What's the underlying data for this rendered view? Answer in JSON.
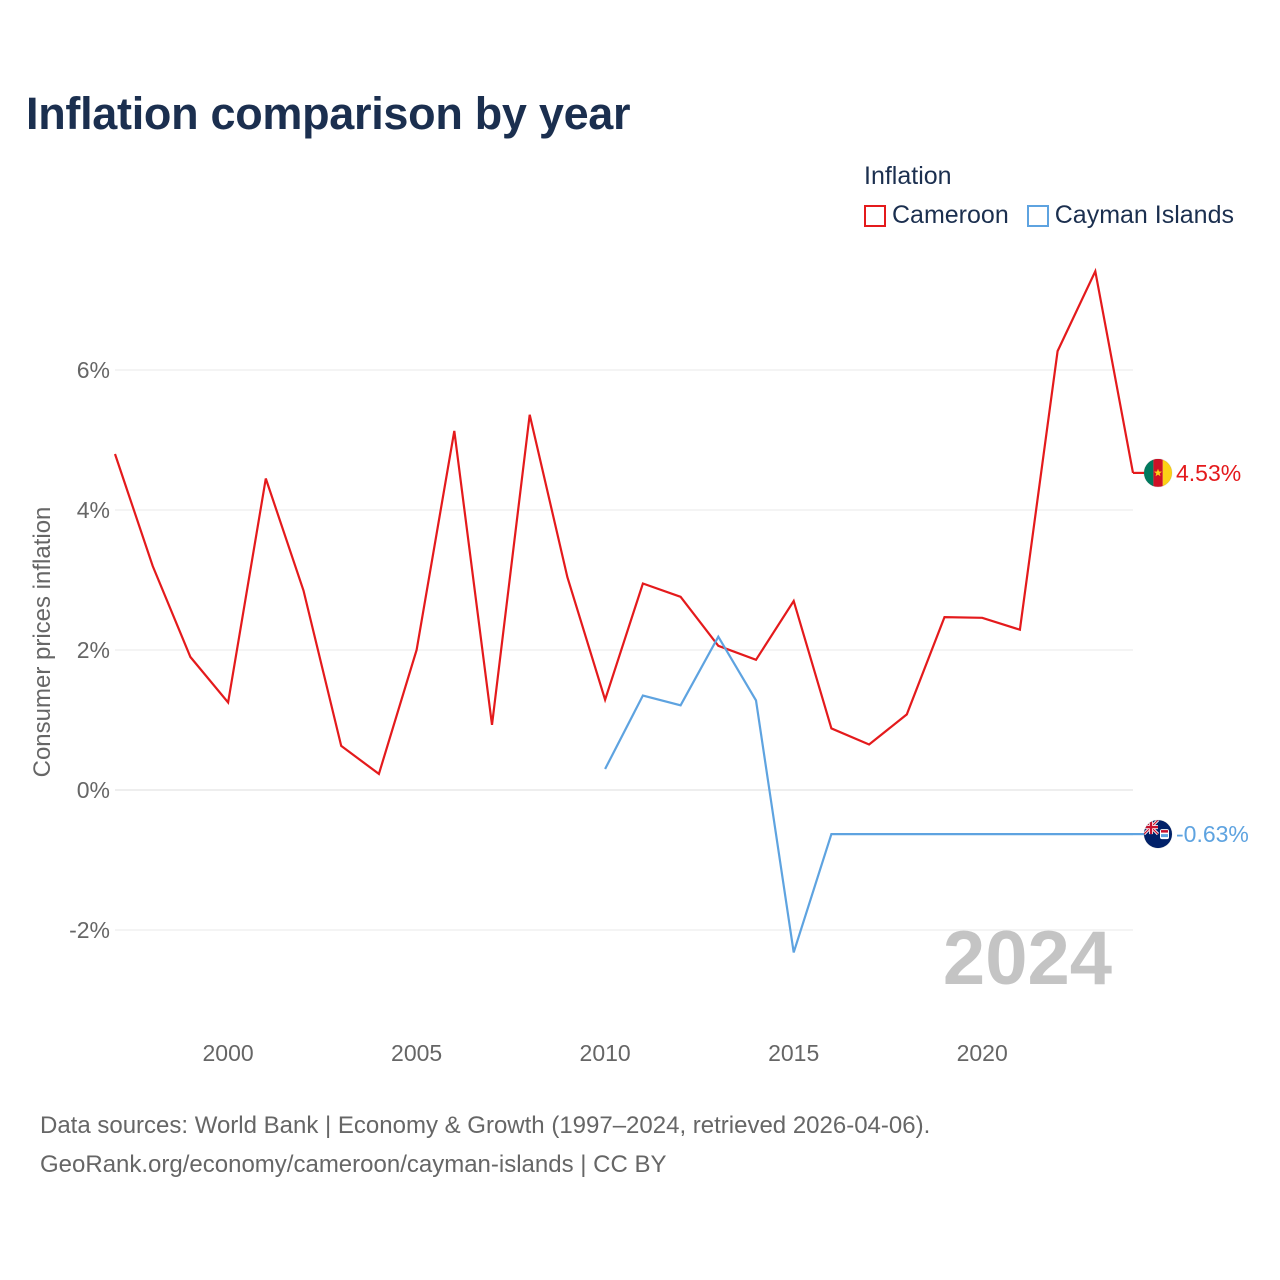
{
  "chart_data": {
    "type": "line",
    "title": "Inflation comparison by year",
    "xlabel": "",
    "ylabel": "Consumer prices inflation",
    "xlim": [
      1997,
      2024
    ],
    "ylim": [
      -3,
      7.5
    ],
    "xticks": [
      2000,
      2005,
      2010,
      2015,
      2020
    ],
    "yticks": [
      -2,
      0,
      2,
      4,
      6
    ],
    "ytick_labels": [
      "-2%",
      "0%",
      "2%",
      "4%",
      "6%"
    ],
    "legend_title": "Inflation",
    "watermark_year": "2024",
    "series": [
      {
        "name": "Cameroon",
        "color": "#e41a1c",
        "end_label": "4.53%",
        "flag": "cameroon-flag",
        "x": [
          1997,
          1998,
          1999,
          2000,
          2001,
          2002,
          2003,
          2004,
          2005,
          2006,
          2007,
          2008,
          2009,
          2010,
          2011,
          2012,
          2013,
          2014,
          2015,
          2016,
          2017,
          2018,
          2019,
          2020,
          2021,
          2022,
          2023,
          2024
        ],
        "values": [
          4.8,
          3.2,
          1.9,
          1.25,
          4.45,
          2.85,
          0.63,
          0.23,
          2.0,
          5.13,
          0.93,
          5.36,
          3.04,
          1.29,
          2.95,
          2.76,
          2.06,
          1.86,
          2.7,
          0.88,
          0.65,
          1.08,
          2.47,
          2.46,
          2.29,
          6.27,
          7.41,
          4.53
        ]
      },
      {
        "name": "Cayman Islands",
        "color": "#5ea3e0",
        "end_label": "-0.63%",
        "flag": "cayman-islands-flag",
        "x": [
          2010,
          2011,
          2012,
          2013,
          2014,
          2015,
          2016,
          2017,
          2018,
          2019,
          2020,
          2021,
          2022,
          2023,
          2024
        ],
        "values": [
          0.3,
          1.35,
          1.21,
          2.19,
          1.28,
          -2.32,
          -0.63,
          -0.63,
          -0.63,
          -0.63,
          -0.63,
          -0.63,
          -0.63,
          -0.63,
          -0.63
        ]
      }
    ],
    "source_line1": "Data sources: World Bank | Economy & Growth (1997–2024, retrieved 2026-04-06).",
    "source_line2": "GeoRank.org/economy/cameroon/cayman-islands | CC BY"
  }
}
